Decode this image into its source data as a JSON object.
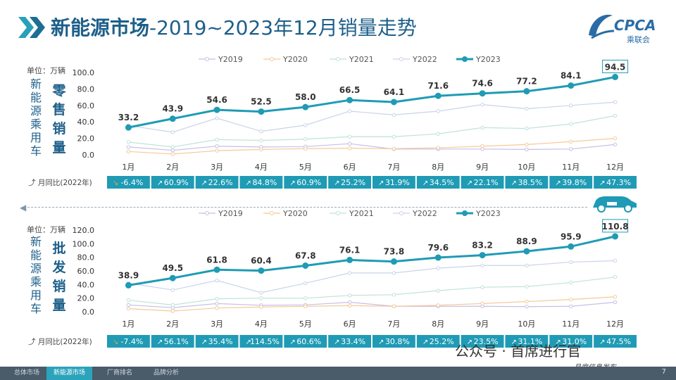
{
  "header": {
    "title_strong": "新能源市场",
    "title_rest": "-2019~2023年12月销量走势",
    "logo_text": "CPCA",
    "logo_sub": "乘联会"
  },
  "unit_label": "单位：万辆",
  "yoy_label": "月同比(2022年)",
  "side_label_left": [
    "新",
    "能",
    "源",
    "乘",
    "用",
    "车"
  ],
  "retail_label": [
    "零",
    "售",
    "销",
    "量"
  ],
  "wholesale_label": [
    "批",
    "发",
    "销",
    "量"
  ],
  "colors": {
    "Y2019": "#c7bfe6",
    "Y2020": "#f5c99a",
    "Y2021": "#bfe3d8",
    "Y2022": "#c9d3ea",
    "Y2023": "#1f9bb5",
    "yoy_bar": "#1f9bb5",
    "yoy_neg": "#e8a33c",
    "title": "#1d5f8a"
  },
  "chart_data": [
    {
      "type": "line",
      "title": "零售销量",
      "categories": [
        "1月",
        "2月",
        "3月",
        "4月",
        "5月",
        "6月",
        "7月",
        "8月",
        "9月",
        "10月",
        "11月",
        "12月"
      ],
      "ylim": [
        0,
        100
      ],
      "yticks": [
        "0.0",
        "20.0",
        "40.0",
        "60.0",
        "80.0",
        "100.0"
      ],
      "legend": "top",
      "series": [
        {
          "name": "Y2019",
          "values": [
            9.5,
            5.5,
            10.5,
            9.5,
            10,
            13.5,
            7,
            7,
            7,
            6.5,
            7,
            12.5
          ]
        },
        {
          "name": "Y2020",
          "values": [
            4,
            1,
            5,
            6.5,
            7.5,
            8,
            7.5,
            8.5,
            10.5,
            12.5,
            16,
            20
          ]
        },
        {
          "name": "Y2021",
          "values": [
            15.5,
            9.5,
            18.5,
            17.5,
            19,
            22,
            22,
            25.5,
            33,
            32,
            37.5,
            47.5
          ]
        },
        {
          "name": "Y2022",
          "values": [
            35.5,
            27.5,
            44.5,
            28.5,
            36,
            53,
            48.5,
            53,
            61,
            56,
            60,
            64
          ]
        },
        {
          "name": "Y2023",
          "values": [
            33.2,
            43.9,
            54.6,
            52.5,
            58.0,
            66.5,
            64.1,
            71.6,
            74.6,
            77.2,
            84.1,
            94.5
          ]
        }
      ],
      "data_labels": [
        "33.2",
        "43.9",
        "54.6",
        "52.5",
        "58.0",
        "66.5",
        "64.1",
        "71.6",
        "74.6",
        "77.2",
        "84.1",
        "94.5"
      ],
      "yoy": [
        "-6.4%",
        "60.9%",
        "22.6%",
        "84.8%",
        "60.9%",
        "25.2%",
        "31.9%",
        "34.5%",
        "22.1%",
        "38.5%",
        "39.8%",
        "47.3%"
      ]
    },
    {
      "type": "line",
      "title": "批发销量",
      "categories": [
        "1月",
        "2月",
        "3月",
        "4月",
        "5月",
        "6月",
        "7月",
        "8月",
        "9月",
        "10月",
        "11月",
        "12月"
      ],
      "ylim": [
        0,
        120
      ],
      "yticks": [
        "0.0",
        "20.0",
        "40.0",
        "60.0",
        "80.0",
        "100.0",
        "120.0"
      ],
      "legend": "top",
      "series": [
        {
          "name": "Y2019",
          "values": [
            10,
            6,
            12,
            9.5,
            10,
            14,
            8,
            8,
            8,
            7.5,
            8,
            14
          ]
        },
        {
          "name": "Y2020",
          "values": [
            4.5,
            1,
            5.5,
            7,
            8,
            9,
            8,
            9.5,
            12,
            15,
            18,
            22
          ]
        },
        {
          "name": "Y2021",
          "values": [
            17,
            10,
            19,
            20,
            20,
            24,
            25,
            31,
            36,
            37,
            43,
            51
          ]
        },
        {
          "name": "Y2022",
          "values": [
            42,
            32,
            46,
            28,
            42,
            57,
            57,
            64,
            68,
            68,
            73,
            75
          ]
        },
        {
          "name": "Y2023",
          "values": [
            38.9,
            49.5,
            61.8,
            60.4,
            67.8,
            76.1,
            73.8,
            79.6,
            83.2,
            88.9,
            95.9,
            110.8
          ]
        }
      ],
      "data_labels": [
        "38.9",
        "49.5",
        "61.8",
        "60.4",
        "67.8",
        "76.1",
        "73.8",
        "79.6",
        "83.2",
        "88.9",
        "95.9",
        "110.8"
      ],
      "yoy": [
        "-7.4%",
        "56.1%",
        "35.4%",
        "114.5%",
        "60.6%",
        "33.4%",
        "30.8%",
        "25.2%",
        "23.5%",
        "31.1%",
        "31.0%",
        "47.5%"
      ]
    }
  ],
  "footer": {
    "tabs": [
      "总体市场",
      "新能源市场",
      "厂商排名",
      "品牌分析"
    ],
    "active_index": 1,
    "page_number": "7",
    "watermark": "公众号 · 首席进行官",
    "watermark_sub": "月度信息发布"
  }
}
